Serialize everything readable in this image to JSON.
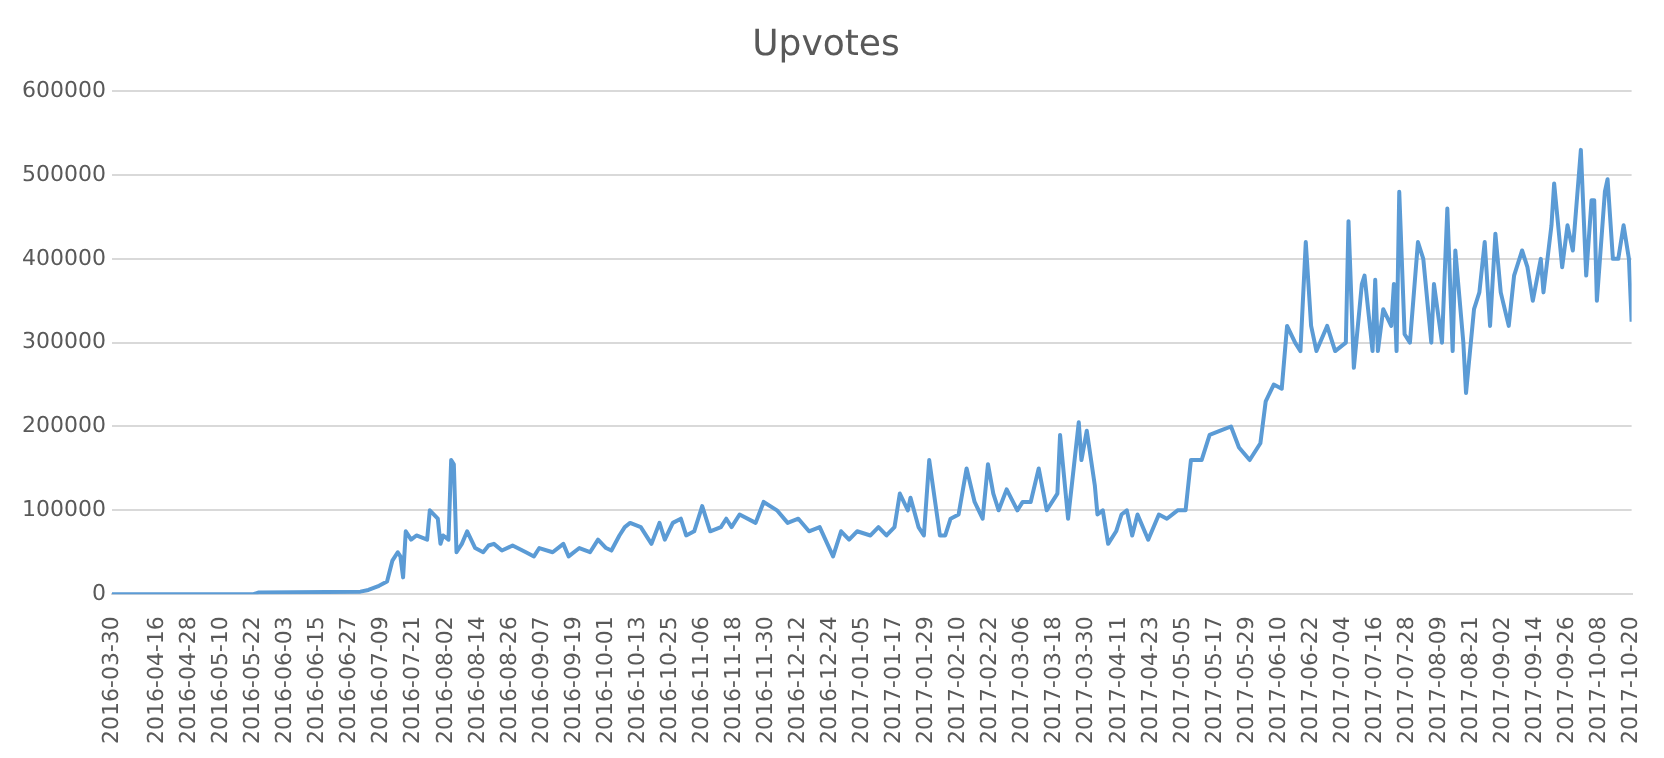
{
  "chart_data": {
    "type": "line",
    "title": "Upvotes",
    "grid": "y",
    "legend": false,
    "marker": "none",
    "line_style": "solid",
    "xlim": [
      "2016-03-30",
      "2017-10-20"
    ],
    "xticks": [
      "2016-03-30",
      "2016-04-16",
      "2016-04-28",
      "2016-05-10",
      "2016-05-22",
      "2016-06-03",
      "2016-06-15",
      "2016-06-27",
      "2016-07-09",
      "2016-07-21",
      "2016-08-02",
      "2016-08-14",
      "2016-08-26",
      "2016-09-07",
      "2016-09-19",
      "2016-10-01",
      "2016-10-13",
      "2016-10-25",
      "2016-11-06",
      "2016-11-18",
      "2016-11-30",
      "2016-12-12",
      "2016-12-24",
      "2017-01-05",
      "2017-01-17",
      "2017-01-29",
      "2017-02-10",
      "2017-02-22",
      "2017-03-06",
      "2017-03-18",
      "2017-03-30",
      "2017-04-11",
      "2017-04-23",
      "2017-05-05",
      "2017-05-17",
      "2017-05-29",
      "2017-06-10",
      "2017-06-22",
      "2017-07-04",
      "2017-07-16",
      "2017-07-28",
      "2017-08-09",
      "2017-08-21",
      "2017-09-02",
      "2017-09-14",
      "2017-09-26",
      "2017-10-08",
      "2017-10-20"
    ],
    "ylim": [
      0,
      600000
    ],
    "yticks": [
      0,
      100000,
      200000,
      300000,
      400000,
      500000,
      600000
    ],
    "series": [
      {
        "color": "#5b9bd5",
        "x": [
          "2016-03-30",
          "2016-05-22",
          "2016-05-24",
          "2016-07-01",
          "2016-07-04",
          "2016-07-08",
          "2016-07-11",
          "2016-07-13",
          "2016-07-15",
          "2016-07-16",
          "2016-07-17",
          "2016-07-18",
          "2016-07-20",
          "2016-07-22",
          "2016-07-26",
          "2016-07-27",
          "2016-07-30",
          "2016-07-31",
          "2016-08-01",
          "2016-08-03",
          "2016-08-04",
          "2016-08-05",
          "2016-08-06",
          "2016-08-08",
          "2016-08-10",
          "2016-08-13",
          "2016-08-16",
          "2016-08-18",
          "2016-08-20",
          "2016-08-23",
          "2016-08-27",
          "2016-09-01",
          "2016-09-04",
          "2016-09-06",
          "2016-09-11",
          "2016-09-15",
          "2016-09-17",
          "2016-09-21",
          "2016-09-25",
          "2016-09-28",
          "2016-10-01",
          "2016-10-03",
          "2016-10-06",
          "2016-10-08",
          "2016-10-10",
          "2016-10-14",
          "2016-10-18",
          "2016-10-21",
          "2016-10-23",
          "2016-10-26",
          "2016-10-29",
          "2016-10-31",
          "2016-11-03",
          "2016-11-06",
          "2016-11-09",
          "2016-11-13",
          "2016-11-15",
          "2016-11-17",
          "2016-11-20",
          "2016-11-26",
          "2016-11-29",
          "2016-12-04",
          "2016-12-08",
          "2016-12-12",
          "2016-12-16",
          "2016-12-20",
          "2016-12-25",
          "2016-12-28",
          "2016-12-31",
          "2017-01-03",
          "2017-01-08",
          "2017-01-11",
          "2017-01-14",
          "2017-01-17",
          "2017-01-19",
          "2017-01-22",
          "2017-01-23",
          "2017-01-26",
          "2017-01-28",
          "2017-01-30",
          "2017-02-03",
          "2017-02-05",
          "2017-02-07",
          "2017-02-10",
          "2017-02-13",
          "2017-02-16",
          "2017-02-19",
          "2017-02-21",
          "2017-02-23",
          "2017-02-25",
          "2017-02-28",
          "2017-03-04",
          "2017-03-06",
          "2017-03-09",
          "2017-03-12",
          "2017-03-15",
          "2017-03-19",
          "2017-03-20",
          "2017-03-23",
          "2017-03-27",
          "2017-03-28",
          "2017-03-30",
          "2017-04-02",
          "2017-04-03",
          "2017-04-05",
          "2017-04-07",
          "2017-04-10",
          "2017-04-12",
          "2017-04-14",
          "2017-04-16",
          "2017-04-18",
          "2017-04-22",
          "2017-04-26",
          "2017-04-29",
          "2017-05-03",
          "2017-05-06",
          "2017-05-08",
          "2017-05-12",
          "2017-05-15",
          "2017-05-19",
          "2017-05-23",
          "2017-05-26",
          "2017-05-30",
          "2017-06-03",
          "2017-06-05",
          "2017-06-08",
          "2017-06-11",
          "2017-06-13",
          "2017-06-16",
          "2017-06-18",
          "2017-06-20",
          "2017-06-22",
          "2017-06-24",
          "2017-06-28",
          "2017-07-01",
          "2017-07-05",
          "2017-07-06",
          "2017-07-08",
          "2017-07-11",
          "2017-07-12",
          "2017-07-15",
          "2017-07-16",
          "2017-07-17",
          "2017-07-19",
          "2017-07-22",
          "2017-07-23",
          "2017-07-24",
          "2017-07-25",
          "2017-07-27",
          "2017-07-29",
          "2017-08-01",
          "2017-08-03",
          "2017-08-06",
          "2017-08-07",
          "2017-08-10",
          "2017-08-12",
          "2017-08-14",
          "2017-08-15",
          "2017-08-18",
          "2017-08-19",
          "2017-08-22",
          "2017-08-24",
          "2017-08-26",
          "2017-08-28",
          "2017-08-30",
          "2017-09-01",
          "2017-09-04",
          "2017-09-06",
          "2017-09-09",
          "2017-09-11",
          "2017-09-13",
          "2017-09-16",
          "2017-09-17",
          "2017-09-20",
          "2017-09-21",
          "2017-09-24",
          "2017-09-26",
          "2017-09-28",
          "2017-10-01",
          "2017-10-03",
          "2017-10-05",
          "2017-10-06",
          "2017-10-07",
          "2017-10-10",
          "2017-10-11",
          "2017-10-13",
          "2017-10-15",
          "2017-10-17",
          "2017-10-19",
          "2017-10-20"
        ],
        "values": [
          0,
          0,
          2000,
          3000,
          5000,
          10000,
          15000,
          40000,
          50000,
          45000,
          20000,
          75000,
          65000,
          70000,
          65000,
          100000,
          90000,
          60000,
          70000,
          65000,
          160000,
          155000,
          50000,
          60000,
          75000,
          55000,
          50000,
          58000,
          60000,
          52000,
          58000,
          50000,
          45000,
          55000,
          50000,
          60000,
          45000,
          55000,
          50000,
          65000,
          55000,
          52000,
          70000,
          80000,
          85000,
          80000,
          60000,
          85000,
          65000,
          85000,
          90000,
          70000,
          75000,
          105000,
          75000,
          80000,
          90000,
          80000,
          95000,
          85000,
          110000,
          100000,
          85000,
          90000,
          75000,
          80000,
          45000,
          75000,
          65000,
          75000,
          70000,
          80000,
          70000,
          80000,
          120000,
          100000,
          115000,
          80000,
          70000,
          160000,
          70000,
          70000,
          90000,
          95000,
          150000,
          110000,
          90000,
          155000,
          120000,
          100000,
          125000,
          100000,
          110000,
          110000,
          150000,
          100000,
          120000,
          190000,
          90000,
          205000,
          160000,
          195000,
          130000,
          95000,
          100000,
          60000,
          75000,
          95000,
          100000,
          70000,
          95000,
          65000,
          95000,
          90000,
          100000,
          100000,
          160000,
          160000,
          190000,
          195000,
          200000,
          175000,
          160000,
          180000,
          230000,
          250000,
          245000,
          320000,
          300000,
          290000,
          420000,
          320000,
          290000,
          320000,
          290000,
          300000,
          445000,
          270000,
          370000,
          380000,
          290000,
          375000,
          290000,
          340000,
          320000,
          370000,
          290000,
          480000,
          310000,
          300000,
          420000,
          400000,
          300000,
          370000,
          300000,
          460000,
          290000,
          410000,
          300000,
          240000,
          340000,
          360000,
          420000,
          320000,
          430000,
          360000,
          320000,
          380000,
          410000,
          390000,
          350000,
          400000,
          360000,
          440000,
          490000,
          390000,
          440000,
          410000,
          530000,
          380000,
          470000,
          470000,
          350000,
          480000,
          495000,
          400000,
          400000,
          440000,
          400000,
          325000
        ]
      }
    ]
  }
}
